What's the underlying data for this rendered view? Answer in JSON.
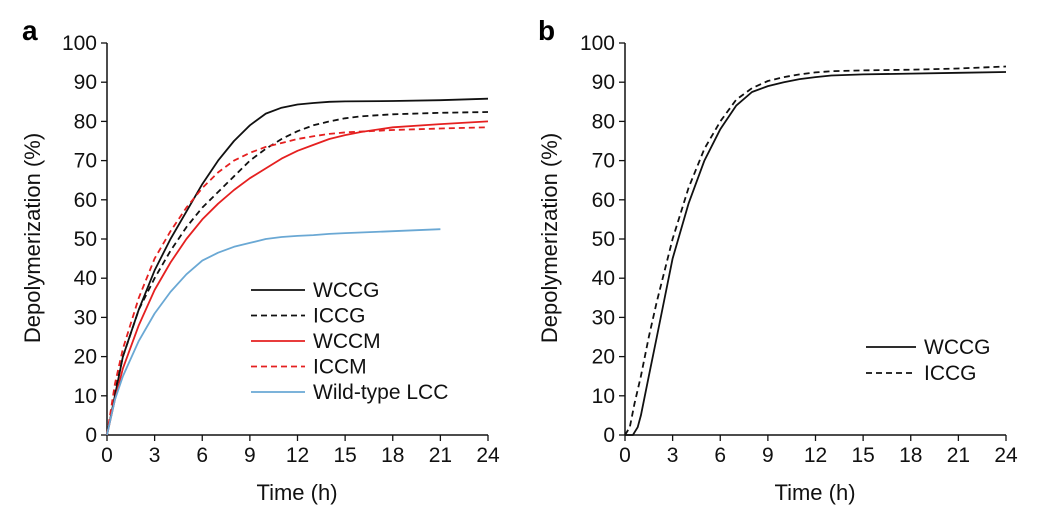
{
  "chart_data": [
    {
      "panel_label": "a",
      "type": "line",
      "xlabel": "Time (h)",
      "ylabel": "Depolymerization (%)",
      "xlim": [
        0,
        24
      ],
      "ylim": [
        0,
        100
      ],
      "xticks": [
        "0",
        "3",
        "6",
        "9",
        "12",
        "15",
        "18",
        "21",
        "24"
      ],
      "yticks": [
        "0",
        "10",
        "20",
        "30",
        "40",
        "50",
        "60",
        "70",
        "80",
        "90",
        "100"
      ],
      "legend_position": "bottom-right",
      "series": [
        {
          "name": "WCCG",
          "color": "#111111",
          "style": "solid",
          "x": [
            0,
            0.5,
            1,
            2,
            3,
            4,
            5,
            6,
            7,
            8,
            9,
            10,
            11,
            12,
            13,
            14,
            15,
            18,
            21,
            24
          ],
          "y": [
            0,
            10,
            20,
            32,
            42,
            50,
            57,
            64,
            70,
            75,
            79,
            82,
            83.5,
            84.3,
            84.7,
            85,
            85.1,
            85.2,
            85.4,
            85.8
          ]
        },
        {
          "name": "ICCG",
          "color": "#111111",
          "style": "dashed",
          "x": [
            0,
            0.5,
            1,
            2,
            3,
            4,
            5,
            6,
            7,
            8,
            9,
            10,
            11,
            12,
            13,
            14,
            15,
            16,
            18,
            21,
            24
          ],
          "y": [
            0,
            11,
            20,
            32,
            40,
            47,
            53,
            58,
            62,
            66,
            70,
            73,
            75.5,
            77.5,
            79,
            80,
            80.8,
            81.3,
            81.8,
            82.2,
            82.4
          ]
        },
        {
          "name": "WCCM",
          "color": "#e52020",
          "style": "solid",
          "x": [
            0,
            0.5,
            1,
            2,
            3,
            4,
            5,
            6,
            7,
            8,
            9,
            10,
            11,
            12,
            13,
            14,
            15,
            16,
            18,
            21,
            24
          ],
          "y": [
            0,
            9,
            17,
            28,
            37,
            44,
            50,
            55,
            59,
            62.5,
            65.5,
            68,
            70.5,
            72.5,
            74,
            75.5,
            76.5,
            77.3,
            78.5,
            79.3,
            80
          ]
        },
        {
          "name": "ICCM",
          "color": "#e52020",
          "style": "dashed",
          "x": [
            0,
            0.5,
            1,
            2,
            3,
            4,
            5,
            6,
            7,
            8,
            9,
            10,
            11,
            12,
            13,
            14,
            15,
            18,
            21,
            24
          ],
          "y": [
            0,
            13,
            22,
            35,
            45,
            52,
            58,
            63,
            67,
            70,
            72,
            73.5,
            74.5,
            75.5,
            76.2,
            76.8,
            77.2,
            77.8,
            78.2,
            78.5
          ]
        },
        {
          "name": "Wild-type LCC",
          "color": "#6aa8d4",
          "style": "solid",
          "x": [
            0,
            0.5,
            1,
            2,
            3,
            4,
            5,
            6,
            7,
            8,
            9,
            10,
            11,
            12,
            13,
            14,
            15,
            18,
            21
          ],
          "y": [
            0,
            9,
            15,
            24,
            31,
            36.5,
            41,
            44.5,
            46.5,
            48,
            49,
            50,
            50.5,
            50.8,
            51,
            51.3,
            51.5,
            52,
            52.5
          ]
        }
      ]
    },
    {
      "panel_label": "b",
      "type": "line",
      "xlabel": "Time (h)",
      "ylabel": "Depolymerization (%)",
      "xlim": [
        0,
        24
      ],
      "ylim": [
        0,
        100
      ],
      "xticks": [
        "0",
        "3",
        "6",
        "9",
        "12",
        "15",
        "18",
        "21",
        "24"
      ],
      "yticks": [
        "0",
        "10",
        "20",
        "30",
        "40",
        "50",
        "60",
        "70",
        "80",
        "90",
        "100"
      ],
      "legend_position": "bottom-right",
      "series": [
        {
          "name": "WCCG",
          "color": "#111111",
          "style": "solid",
          "x": [
            0,
            0.5,
            0.8,
            1,
            1.5,
            2,
            3,
            4,
            5,
            6,
            7,
            8,
            9,
            10,
            11,
            12,
            13,
            15,
            18,
            21,
            24
          ],
          "y": [
            0,
            0,
            2,
            5,
            15,
            25,
            45,
            59,
            70,
            78,
            84,
            87.5,
            89,
            90,
            90.8,
            91.3,
            91.7,
            92,
            92.2,
            92.4,
            92.6
          ]
        },
        {
          "name": "ICCG",
          "color": "#111111",
          "style": "dashed",
          "x": [
            0,
            0.3,
            0.6,
            1,
            1.5,
            2,
            3,
            4,
            5,
            6,
            7,
            8,
            9,
            10,
            11,
            12,
            13,
            15,
            18,
            21,
            24
          ],
          "y": [
            0,
            2,
            8,
            15,
            25,
            34,
            50,
            63,
            73,
            80,
            85.5,
            88.5,
            90.3,
            91.3,
            92,
            92.5,
            92.8,
            93,
            93.2,
            93.5,
            94
          ]
        }
      ]
    }
  ]
}
